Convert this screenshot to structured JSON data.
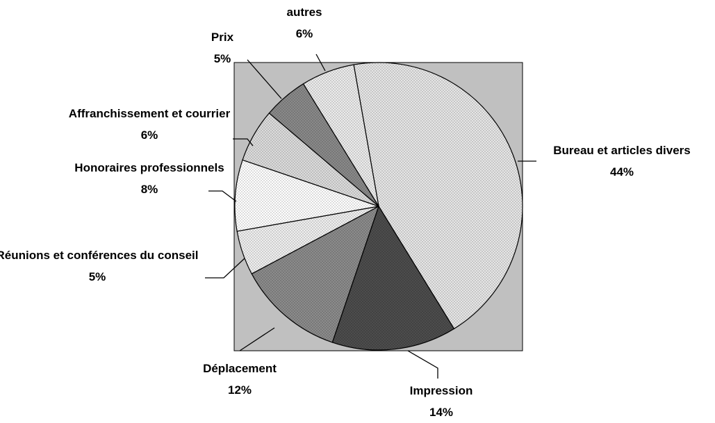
{
  "chart_data": {
    "type": "pie",
    "categories": [
      "Bureau et articles divers",
      "Impression",
      "Déplacement",
      "Réunions et conférences du conseil",
      "Honoraires professionnels",
      "Affranchissement et courrier",
      "Prix",
      "autres"
    ],
    "values": [
      44,
      14,
      12,
      5,
      8,
      6,
      5,
      6
    ],
    "value_labels": [
      "44%",
      "14%",
      "12%",
      "5%",
      "8%",
      "6%",
      "5%",
      "6%"
    ],
    "colors": [
      "#e6e6e6",
      "#4d4d4d",
      "#8c8c8c",
      "#efefef",
      "#ffffff",
      "#dcdcdc",
      "#8a8a8a",
      "#ececec"
    ]
  }
}
